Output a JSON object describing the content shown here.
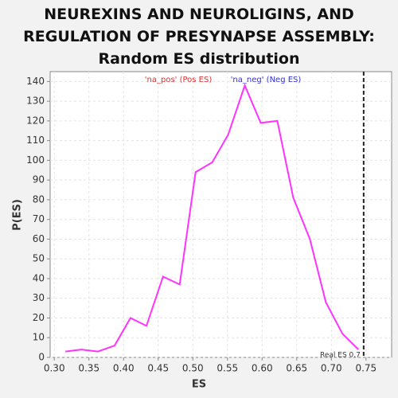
{
  "chart_data": {
    "type": "line",
    "title": "NEUREXINS AND NEUROLIGINS, AND REGULATION OF PRESYNAPSE ASSEMBLY: Random ES distribution",
    "x_label": "ES",
    "y_label": "P(ES)",
    "x": [
      0.316,
      0.339,
      0.363,
      0.387,
      0.41,
      0.433,
      0.457,
      0.481,
      0.504,
      0.528,
      0.551,
      0.575,
      0.598,
      0.622,
      0.645,
      0.669,
      0.692,
      0.716,
      0.739
    ],
    "series": [
      {
        "name": "Random ES",
        "color": "#ff33ff",
        "values": [
          3,
          4,
          3,
          6,
          20,
          16,
          41,
          37,
          94,
          99,
          113,
          138,
          119,
          120,
          81,
          60,
          28,
          12,
          4
        ]
      }
    ],
    "xlim": [
      0.294,
      0.787
    ],
    "ylim": [
      0,
      145
    ],
    "xticks": [
      {
        "value": 0.3,
        "label": "0.30"
      },
      {
        "value": 0.35,
        "label": "0.35"
      },
      {
        "value": 0.4,
        "label": "0.40"
      },
      {
        "value": 0.45,
        "label": "0.45"
      },
      {
        "value": 0.5,
        "label": "0.50"
      },
      {
        "value": 0.55,
        "label": "0.55"
      },
      {
        "value": 0.6,
        "label": "0.60"
      },
      {
        "value": 0.65,
        "label": "0.65"
      },
      {
        "value": 0.7,
        "label": "0.70"
      },
      {
        "value": 0.75,
        "label": "0.75"
      }
    ],
    "yticks": [
      0,
      10,
      20,
      30,
      40,
      50,
      60,
      70,
      80,
      90,
      100,
      110,
      120,
      130,
      140
    ],
    "grid": true,
    "real_es": {
      "value": 0.7466,
      "label": "Real ES 0.7"
    },
    "annotations": [
      {
        "text": "'na_pos' (Pos ES)",
        "color": "#e03030"
      },
      {
        "text": "'na_neg' (Neg ES)",
        "color": "#3030e0"
      }
    ]
  }
}
